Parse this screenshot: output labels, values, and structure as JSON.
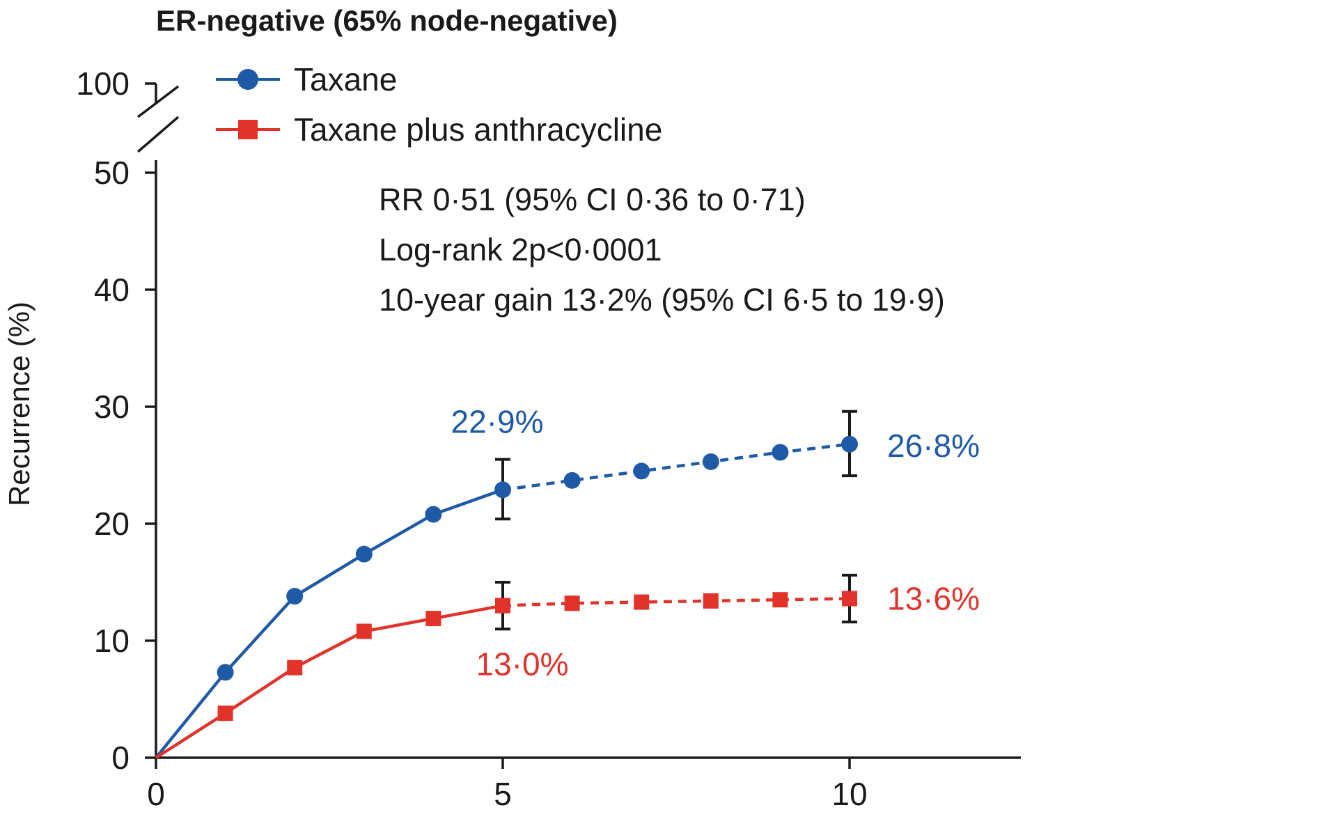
{
  "chart_data": {
    "type": "line",
    "title": "ER-negative (65% node-negative)",
    "xlabel": "",
    "ylabel": "Recurrence (%)",
    "xlim": [
      0,
      12.5
    ],
    "ylim": [
      0,
      50
    ],
    "y_break_top_label": "100",
    "x_ticks": [
      0,
      5,
      10
    ],
    "x_tick_labels": [
      "0",
      "5",
      "10"
    ],
    "y_ticks": [
      0,
      10,
      20,
      30,
      40,
      50
    ],
    "y_tick_labels": [
      "0",
      "10",
      "20",
      "30",
      "40",
      "50"
    ],
    "grid": false,
    "legend_position": "top-left",
    "series": [
      {
        "name": "Taxane",
        "color": "#1f5aa6",
        "marker": "circle",
        "x": [
          0,
          1,
          2,
          3,
          4,
          5,
          6,
          7,
          8,
          9,
          10
        ],
        "y": [
          0,
          7.3,
          13.8,
          17.4,
          20.8,
          22.9,
          23.7,
          24.5,
          25.3,
          26.1,
          26.8
        ],
        "solid_until_x": 5,
        "error_bars": [
          {
            "x": 5,
            "low": 20.4,
            "high": 25.5
          },
          {
            "x": 10,
            "low": 24.1,
            "high": 29.6
          }
        ]
      },
      {
        "name": "Taxane plus anthracycline",
        "color": "#e2332b",
        "marker": "square",
        "x": [
          0,
          1,
          2,
          3,
          4,
          5,
          6,
          7,
          8,
          9,
          10
        ],
        "y": [
          0,
          3.8,
          7.7,
          10.8,
          11.9,
          13.0,
          13.2,
          13.3,
          13.4,
          13.5,
          13.6
        ],
        "solid_until_x": 5,
        "error_bars": [
          {
            "x": 5,
            "low": 11.0,
            "high": 15.0
          },
          {
            "x": 10,
            "low": 11.6,
            "high": 15.6
          }
        ]
      }
    ],
    "annotations": {
      "stats": [
        "RR 0·51 (95% CI 0·36 to 0·71)",
        "Log-rank 2p<0·0001",
        "10-year gain 13·2% (95% CI 6·5 to 19·9)"
      ],
      "data_labels": [
        {
          "text": "22·9%",
          "series": 0,
          "x": 5,
          "y": 22.9
        },
        {
          "text": "26·8%",
          "series": 0,
          "x": 10,
          "y": 26.8
        },
        {
          "text": "13·0%",
          "series": 1,
          "x": 5,
          "y": 13.0
        },
        {
          "text": "13·6%",
          "series": 1,
          "x": 10,
          "y": 13.6
        }
      ]
    }
  }
}
